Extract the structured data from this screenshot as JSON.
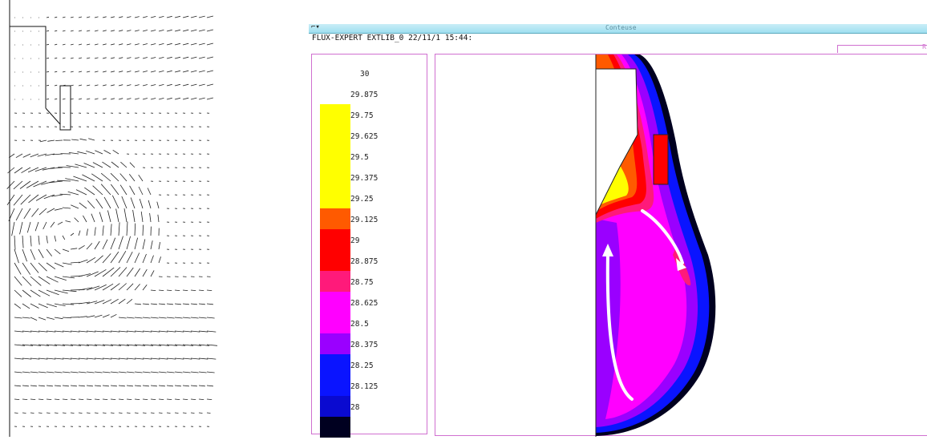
{
  "window": {
    "title": "Conteuse",
    "header": "FLUX-EXPERT EXTLIB_0 22/11/1 15:44:",
    "corner_label": "R"
  },
  "legend": {
    "ticks": [
      "30",
      "29.875",
      "29.75",
      "29.625",
      "29.5",
      "29.375",
      "29.25",
      "29.125",
      "29",
      "28.875",
      "28.75",
      "28.625",
      "28.5",
      "28.375",
      "28.25",
      "28.125",
      "28"
    ],
    "colors": [
      "#ffff00",
      "#ffff00",
      "#ffff00",
      "#ffff00",
      "#ffff00",
      "#ff5a00",
      "#ff0000",
      "#ff0000",
      "#ff1a7a",
      "#ff00ff",
      "#ff00ff",
      "#9a00ff",
      "#0a14ff",
      "#0a14ff",
      "#0a0ad0",
      "#000020"
    ]
  },
  "colors": {
    "frame": "#d070d0",
    "titlebar": "#a8e4f2",
    "yellow": "#ffff00",
    "orange": "#ff5a00",
    "red": "#ff0000",
    "pink": "#ff1a7a",
    "magenta": "#ff00ff",
    "violet": "#9a00ff",
    "blue": "#0a14ff",
    "darkblue": "#000020"
  },
  "icons": [
    "window-menu-icon",
    "flow-arrow-up-icon",
    "flow-arrow-down-icon"
  ]
}
